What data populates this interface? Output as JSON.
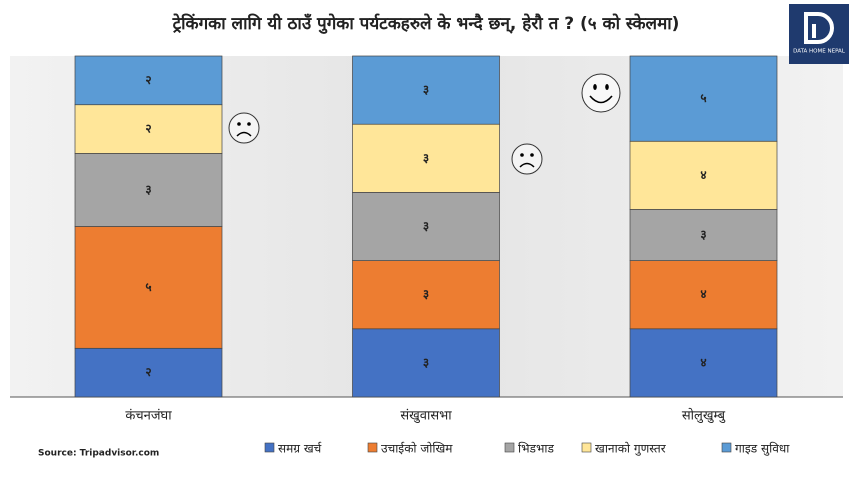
{
  "chart_data": {
    "type": "bar",
    "stacked": "percent",
    "title": "ट्रेकिंगका लागि यी ठाउँ पुगेका पर्यटकहरुले के भन्दै छन्, हेरौ त ? (५ को स्केलमा)",
    "source": "Source: Tripadvisor.com",
    "logo": "DATA HOME NEPAL",
    "categories": [
      "कंचनजंघा",
      "संखुवासभा",
      "सोलुखुम्बु"
    ],
    "legend": "bottom",
    "series": [
      {
        "name": "समग्र खर्च",
        "color": "#4472c4",
        "values": [
          2,
          3,
          4
        ],
        "value_labels": [
          "२",
          "३",
          "४"
        ]
      },
      {
        "name": "उचाईको जोखिम",
        "color": "#ed7d31",
        "values": [
          5,
          3,
          4
        ],
        "value_labels": [
          "५",
          "३",
          "४"
        ]
      },
      {
        "name": "भिडभाड",
        "color": "#a5a5a5",
        "values": [
          3,
          3,
          3
        ],
        "value_labels": [
          "३",
          "३",
          "३"
        ]
      },
      {
        "name": "खानाको गुणस्तर",
        "color": "#ffe699",
        "values": [
          2,
          3,
          4
        ],
        "value_labels": [
          "२",
          "३",
          "४"
        ]
      },
      {
        "name": "गाइड सुविधा",
        "color": "#5b9bd5",
        "values": [
          2,
          3,
          5
        ],
        "value_labels": [
          "२",
          "३",
          "५"
        ]
      }
    ]
  }
}
